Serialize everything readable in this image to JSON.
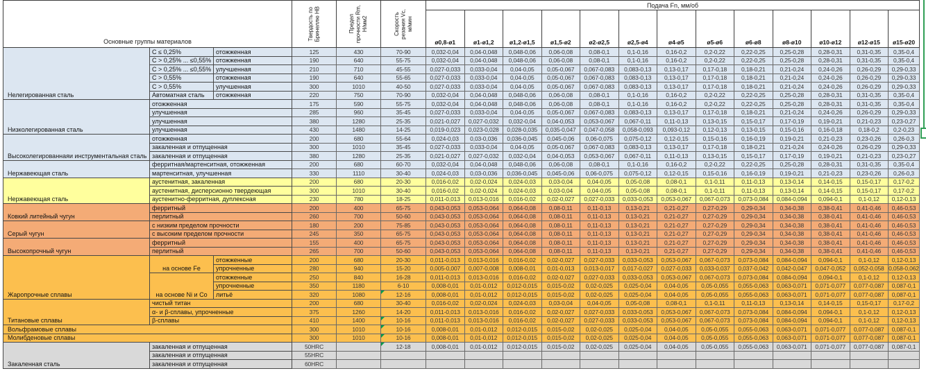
{
  "header": {
    "materials_label": "Основные группы материалов",
    "hardness": "Твердость по\nБринеллю HB",
    "strength": "Предел\nпрочности Rm,\nН/мм2",
    "speed": "Скорость\nрезания Vc,\nм/мин",
    "feed_title": "Подача Fn, мм/об",
    "diameters": [
      "ø0,8-ø1",
      "ø1-ø1,2",
      "ø1,2-ø1,5",
      "ø1,5-ø2",
      "ø2-ø2,5",
      "ø2,5-ø4",
      "ø4-ø5",
      "ø5-ø6",
      "ø6-ø8",
      "ø8-ø10",
      "ø10-ø12",
      "ø12-ø15",
      "ø15-ø20"
    ]
  },
  "colors": {
    "steel_blue": "#dce6f1",
    "stainless_yellow": "#ffff9d",
    "cast_iron_orange": "#f4ab76",
    "alloy_gold": "#fcbf4e",
    "hardened_gray": "#d9d9d9",
    "flag_green": "#089e4c",
    "selection_green": "#2f9e55"
  },
  "feed_patterns": {
    "A": [
      "0,032-0,04",
      "0,04-0,048",
      "0,048-0,06",
      "0,06-0,08",
      "0,08-0,1",
      "0,1-0,16",
      "0,16-0,2",
      "0,2-0,22",
      "0,22-0,25",
      "0,25-0,28",
      "0,28-0,31",
      "0,31-0,35",
      "0,35-0,4"
    ],
    "B": [
      "0,027-0,033",
      "0,033-0,04",
      "0,04-0,05",
      "0,05-0,067",
      "0,067-0,083",
      "0,083-0,13",
      "0,13-0,17",
      "0,17-0,18",
      "0,18-0,21",
      "0,21-0,24",
      "0,24-0,26",
      "0,26-0,29",
      "0,29-0,33"
    ],
    "C": [
      "0,021-0,027",
      "0,027-0,032",
      "0,032-0,04",
      "0,04-0,053",
      "0,053-0,067",
      "0,067-0,11",
      "0,11-0,13",
      "0,13-0,15",
      "0,15-0,17",
      "0,17-0,19",
      "0,19-0,21",
      "0,21-0,23",
      "0,23-0,27"
    ],
    "D": [
      "0,019-0,023",
      "0,023-0,028",
      "0,028-0,035",
      "0,035-0,047",
      "0,047-0,058",
      "0,058-0,093",
      "0,093-0,12",
      "0,12-0,13",
      "0,13-0,15",
      "0,15-0,16",
      "0,16-0,18",
      "0,18-0,2",
      "0,2-0,23"
    ],
    "E": [
      "0,024-0,03",
      "0,03-0,036",
      "0,036-0,045",
      "0,045-0,06",
      "0,06-0,075",
      "0,075-0,12",
      "0,12-0,15",
      "0,15-0,16",
      "0,16-0,19",
      "0,19-0,21",
      "0,21-0,23",
      "0,23-0,26",
      "0,26-0,3"
    ],
    "F": [
      "0,016-0,02",
      "0,02-0,024",
      "0,024-0,03",
      "0,03-0,04",
      "0,04-0,05",
      "0,05-0,08",
      "0,08-0,1",
      "0,1-0,11",
      "0,11-0,13",
      "0,13-0,14",
      "0,14-0,15",
      "0,15-0,17",
      "0,17-0,2"
    ],
    "G": [
      "0,011-0,013",
      "0,013-0,016",
      "0,016-0,02",
      "0,02-0,027",
      "0,027-0,033",
      "0,033-0,053",
      "0,053-0,067",
      "0,067-0,073",
      "0,073-0,084",
      "0,084-0,094",
      "0,094-0,1",
      "0,1-0,12",
      "0,12-0,13"
    ],
    "H": [
      "0,043-0,053",
      "0,053-0,064",
      "0,064-0,08",
      "0,08-0,11",
      "0,11-0,13",
      "0,13-0,21",
      "0,21-0,27",
      "0,27-0,29",
      "0,29-0,34",
      "0,34-0,38",
      "0,38-0,41",
      "0,41-0,46",
      "0,46-0,53"
    ],
    "I": [
      "0,005-0,007",
      "0,007-0,008",
      "0,008-0,01",
      "0,01-0,013",
      "0,013-0,017",
      "0,017-0,027",
      "0,027-0,033",
      "0,033-0,037",
      "0,037-0,042",
      "0,042-0,047",
      "0,047-0,052",
      "0,052-0,058",
      "0,058-0,062"
    ],
    "J": [
      "0,008-0,01",
      "0,01-0,012",
      "0,012-0,015",
      "0,015-0,02",
      "0,02-0,025",
      "0,025-0,04",
      "0,04-0,05",
      "0,05-0,055",
      "0,055-0,063",
      "0,063-0,071",
      "0,071-0,077",
      "0,077-0,087",
      "0,087-0,1"
    ]
  },
  "groups": [
    {
      "name": "Нелегированная сталь",
      "color": "blue",
      "rows": [
        {
          "c1": "C ≤ 0,25%",
          "c2": "отожженная",
          "hb": "125",
          "rm": "430",
          "vc": "70-90",
          "feeds": "A"
        },
        {
          "c1": "C > 0,25% ... ≤0,55%",
          "c2": "отожженная",
          "hb": "190",
          "rm": "640",
          "vc": "55-75",
          "feeds": "A"
        },
        {
          "c1": "C > 0,25% ... ≤0,55%",
          "c2": "улучшенная",
          "hb": "210",
          "rm": "710",
          "vc": "45-55",
          "feeds": "B"
        },
        {
          "c1": "C > 0,55%",
          "c2": "отожженная",
          "hb": "190",
          "rm": "640",
          "vc": "55-65",
          "feeds": "B"
        },
        {
          "c1": "C > 0,55%",
          "c2": "улучшенная",
          "hb": "300",
          "rm": "1010",
          "vc": "40-50",
          "feeds": "B"
        },
        {
          "c1": "Автоматная сталь",
          "c2": "отожженная",
          "hb": "220",
          "rm": "750",
          "vc": "70-90",
          "feeds": "A"
        }
      ]
    },
    {
      "name": "Низколегированная сталь",
      "color": "blue",
      "rows": [
        {
          "label": "отожженная",
          "hb": "175",
          "rm": "590",
          "vc": "55-75",
          "feeds": "A"
        },
        {
          "label": "улучшенная",
          "hb": "285",
          "rm": "960",
          "vc": "35-45",
          "feeds": "B"
        },
        {
          "label": "улучшенная",
          "hb": "380",
          "rm": "1280",
          "vc": "25-35",
          "feeds": "C"
        },
        {
          "label": "улучшенная",
          "hb": "430",
          "rm": "1480",
          "vc": "14-25",
          "feeds": "D"
        }
      ]
    },
    {
      "name": "Высоколегированнаяи инструментальная сталь",
      "color": "blue",
      "rows": [
        {
          "label": "отожженная",
          "hb": "200",
          "rm": "680",
          "vc": "55-64",
          "feeds": "E"
        },
        {
          "label": "закаленная и отпущенная",
          "hb": "300",
          "rm": "1010",
          "vc": "35-45",
          "feeds": "B"
        },
        {
          "label": "закаленная и отпущенная",
          "hb": "380",
          "rm": "1280",
          "vc": "25-35",
          "feeds": "C"
        }
      ]
    },
    {
      "name": "Нержавеющая сталь",
      "color": "blue",
      "rows": [
        {
          "label": "ферритная/мартенситная, отожженная",
          "hb": "200",
          "rm": "680",
          "vc": "60-70",
          "feeds": "A"
        },
        {
          "label": "мартенситная, улучшенная",
          "hb": "330",
          "rm": "1110",
          "vc": "30-40",
          "feeds": "E"
        }
      ]
    },
    {
      "name": "Нержавеющая сталь",
      "color": "yellow",
      "rows": [
        {
          "label": "аустенитная, закаленная",
          "hb": "200",
          "rm": "680",
          "vc": "20-30",
          "feeds": "F"
        },
        {
          "label": "аустенитная, дисперсионно твердеющая",
          "hb": "300",
          "rm": "1010",
          "vc": "30-40",
          "feeds": "F"
        },
        {
          "label": "аустенитно-ферритная, дуплексная",
          "hb": "230",
          "rm": "780",
          "vc": "18-25",
          "feeds": "G"
        }
      ]
    },
    {
      "name": "Ковкий литейный чугун",
      "color": "orange",
      "rows": [
        {
          "label": "ферритный",
          "hb": "200",
          "rm": "400",
          "vc": "65-75",
          "feeds": "H"
        },
        {
          "label": "перлитный",
          "hb": "260",
          "rm": "700",
          "vc": "50-60",
          "feeds": "H"
        }
      ]
    },
    {
      "name": "Серый чугун",
      "color": "orange",
      "rows": [
        {
          "label": "с низким пределом прочности",
          "hb": "180",
          "rm": "200",
          "vc": "75-85",
          "feeds": "H"
        },
        {
          "label": "с высоким пределом прочности",
          "hb": "245",
          "rm": "350",
          "vc": "65-75",
          "feeds": "H"
        }
      ]
    },
    {
      "name": "Высокопрочный чугун",
      "color": "orange",
      "rows": [
        {
          "label": "ферритный",
          "hb": "155",
          "rm": "400",
          "vc": "65-75",
          "feeds": "H"
        },
        {
          "label": "перлитный",
          "hb": "265",
          "rm": "700",
          "vc": "50-60",
          "feeds": "H"
        }
      ]
    },
    {
      "name": "Жаропрочные сплавы",
      "color": "gold",
      "rows": [
        {
          "c1": "на основе Fe",
          "c1span": 2,
          "c2": "отожженные",
          "hb": "200",
          "rm": "680",
          "vc": "20-30",
          "feeds": "G"
        },
        {
          "c1": null,
          "c2": "упрочненные",
          "hb": "280",
          "rm": "940",
          "vc": "15-20",
          "feeds": "I"
        },
        {
          "c1": "на основе Ni и Co",
          "c1span": 3,
          "c2": "отожженные",
          "hb": "250",
          "rm": "840",
          "vc": "16-28",
          "feeds": "G"
        },
        {
          "c1": null,
          "c2": "упрочненные",
          "hb": "350",
          "rm": "1180",
          "vc": "6-10",
          "feeds": "J"
        },
        {
          "c1": null,
          "c2": "литьё",
          "hb": "320",
          "rm": "1080",
          "vc": "12-16",
          "flag": true,
          "feeds": "J"
        }
      ]
    },
    {
      "name": "Титановые сплавы",
      "color": "gold",
      "rows": [
        {
          "label": "чистый титан",
          "hb": "200",
          "rm": "680",
          "vc": "30-40",
          "feeds": "F"
        },
        {
          "label": "α- и β-сплавы, упрочненные",
          "hb": "375",
          "rm": "1260",
          "vc": "14-20",
          "feeds": "G"
        },
        {
          "label": "β-сплавы",
          "hb": "410",
          "rm": "1400",
          "vc": "10-16",
          "flag": true,
          "feeds": "G"
        }
      ]
    },
    {
      "name": "Вольфрамовые сплавы",
      "color": "gold",
      "wide": true,
      "rows": [
        {
          "hb": "300",
          "rm": "1010",
          "vc": "10-16",
          "flag": true,
          "feeds": "J"
        }
      ]
    },
    {
      "name": "Молибденовые сплавы",
      "color": "gold",
      "wide": true,
      "rows": [
        {
          "hb": "300",
          "rm": "1010",
          "vc": "10-16",
          "flag": true,
          "feeds": "J"
        }
      ]
    },
    {
      "name": "Закаленная сталь",
      "color": "gray",
      "rows": [
        {
          "label": "закаленная и отпущенная",
          "hb": "50HRC",
          "rm": "",
          "vc": "12-18",
          "flag": true,
          "feeds": "J"
        },
        {
          "label": "закаленная и отпущенная",
          "hb": "55HRC",
          "rm": "",
          "vc": "",
          "feeds": null
        },
        {
          "label": "закаленная и отпущенная",
          "hb": "60HRC",
          "rm": "",
          "vc": "",
          "feeds": null
        }
      ]
    }
  ],
  "annotations": {
    "error_flag_cells": "green corner markers on Vc cells of rows 29, 32, 33, 34, 35",
    "selection_marker_row_hb": "430"
  }
}
